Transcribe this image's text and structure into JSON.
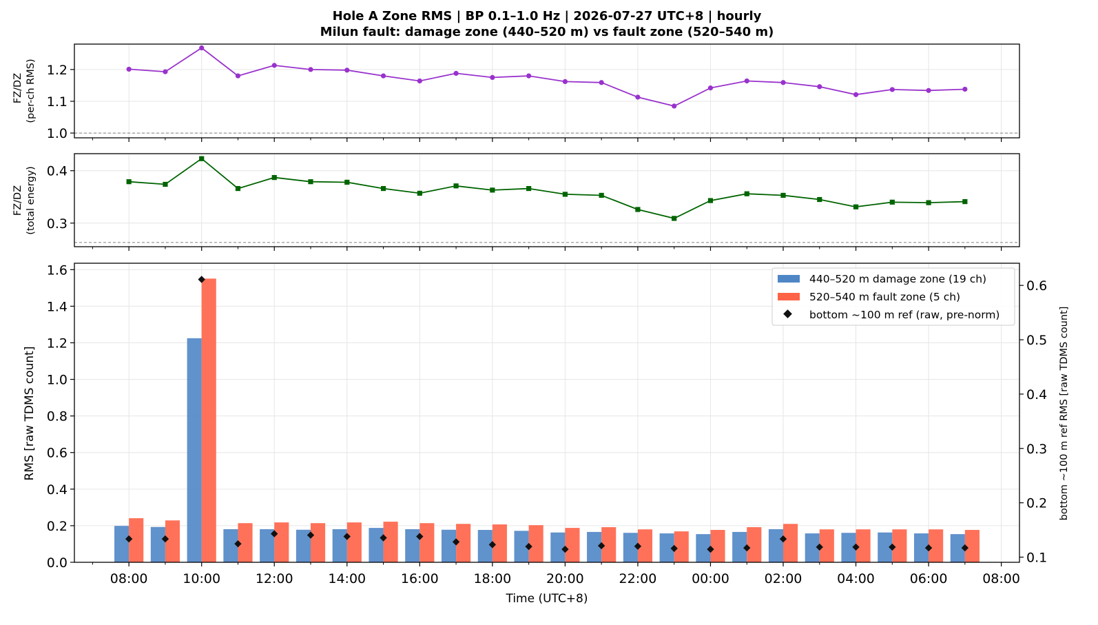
{
  "figure": {
    "title_line1": "Hole A Zone RMS  |  BP 0.1–1.0 Hz  |  2026-07-27 UTC+8  |  hourly",
    "title_line2": "Milun fault: damage zone (440–520 m) vs fault zone (520–540 m)",
    "xlabel": "Time (UTC+8)"
  },
  "colors": {
    "ratio_rms": "#9932cc",
    "ratio_energy": "#006400",
    "damage_zone": "#4f86c6",
    "fault_zone": "#ff6347",
    "reference": "#111111",
    "ref_line": "#808080"
  },
  "chart_data": [
    {
      "type": "line",
      "panel": "ratio-rms",
      "ylabel_line1": "FZ/DZ",
      "ylabel_line2": "(per-ch RMS)",
      "ylim": [
        0.985,
        1.28
      ],
      "yticks": [
        1.0,
        1.1,
        1.2
      ],
      "ytick_labels": [
        "1.0",
        "1.1",
        "1.2"
      ],
      "reference_line": 1.0,
      "grid": true,
      "series": [
        {
          "marker": "circle",
          "values": [
            1.201,
            1.193,
            1.268,
            1.18,
            1.213,
            1.2,
            1.198,
            1.18,
            1.164,
            1.188,
            1.175,
            1.18,
            1.162,
            1.159,
            1.113,
            1.085,
            1.142,
            1.164,
            1.159,
            1.146,
            1.121,
            1.137,
            1.134,
            1.138
          ]
        }
      ]
    },
    {
      "type": "line",
      "panel": "ratio-energy",
      "ylabel_line1": "FZ/DZ",
      "ylabel_line2": "(total energy)",
      "ylim": [
        0.255,
        0.4325
      ],
      "yticks": [
        0.3,
        0.4
      ],
      "ytick_labels": [
        "0.3",
        "0.4"
      ],
      "reference_line": 0.263,
      "grid": true,
      "series": [
        {
          "marker": "square",
          "values": [
            0.379,
            0.374,
            0.423,
            0.366,
            0.387,
            0.379,
            0.378,
            0.366,
            0.357,
            0.371,
            0.363,
            0.366,
            0.355,
            0.353,
            0.326,
            0.309,
            0.343,
            0.356,
            0.353,
            0.345,
            0.331,
            0.34,
            0.339,
            0.341
          ]
        }
      ]
    },
    {
      "type": "bar",
      "panel": "zone-rms",
      "ylabel": "RMS  [raw TDMS count]",
      "ylabel_right": "bottom ~100 m ref RMS  [raw TDMS count]",
      "ylim": [
        0,
        1.635
      ],
      "yticks": [
        0.0,
        0.2,
        0.4,
        0.6,
        0.8,
        1.0,
        1.2,
        1.4,
        1.6
      ],
      "ytick_labels": [
        "0.0",
        "0.2",
        "0.4",
        "0.6",
        "0.8",
        "1.0",
        "1.2",
        "1.4",
        "1.6"
      ],
      "ylim_right": [
        0.0905,
        0.6408
      ],
      "yticks_right": [
        0.1,
        0.2,
        0.3,
        0.4,
        0.5,
        0.6
      ],
      "ytick_labels_right": [
        "0.1",
        "0.2",
        "0.3",
        "0.4",
        "0.5",
        "0.6"
      ],
      "legend_position": "upper right",
      "grid": true,
      "series": [
        {
          "name": "440–520 m  damage zone (19 ch)",
          "kind": "bar",
          "values": [
            0.199,
            0.193,
            1.225,
            0.181,
            0.181,
            0.178,
            0.181,
            0.188,
            0.181,
            0.178,
            0.177,
            0.172,
            0.163,
            0.166,
            0.161,
            0.158,
            0.154,
            0.166,
            0.181,
            0.158,
            0.161,
            0.163,
            0.158,
            0.154
          ]
        },
        {
          "name": "520–540 m  fault zone (5 ch)",
          "kind": "bar",
          "values": [
            0.241,
            0.229,
            1.551,
            0.214,
            0.218,
            0.214,
            0.218,
            0.222,
            0.214,
            0.21,
            0.207,
            0.203,
            0.188,
            0.192,
            0.18,
            0.169,
            0.177,
            0.192,
            0.21,
            0.18,
            0.18,
            0.18,
            0.18,
            0.177
          ]
        },
        {
          "name": "bottom ~100 m ref (raw, pre-norm)",
          "kind": "marker",
          "axis": "right",
          "values": [
            0.1335,
            0.1335,
            0.611,
            0.1245,
            0.143,
            0.1405,
            0.138,
            0.1355,
            0.138,
            0.128,
            0.123,
            0.1195,
            0.1145,
            0.121,
            0.12,
            0.116,
            0.1145,
            0.117,
            0.1335,
            0.1185,
            0.1185,
            0.1185,
            0.117,
            0.117
          ]
        }
      ]
    }
  ],
  "x_axis": {
    "hours": [
      "08:00",
      "09:00",
      "10:00",
      "11:00",
      "12:00",
      "13:00",
      "14:00",
      "15:00",
      "16:00",
      "17:00",
      "18:00",
      "19:00",
      "20:00",
      "21:00",
      "22:00",
      "23:00",
      "00:00",
      "01:00",
      "02:00",
      "03:00",
      "04:00",
      "05:00",
      "06:00",
      "07:00"
    ],
    "xlim": [
      "06:30",
      "08:30 (next day)"
    ],
    "tick_labels": [
      "08:00",
      "10:00",
      "12:00",
      "14:00",
      "16:00",
      "18:00",
      "20:00",
      "22:00",
      "00:00",
      "02:00",
      "04:00",
      "06:00",
      "08:00"
    ]
  }
}
